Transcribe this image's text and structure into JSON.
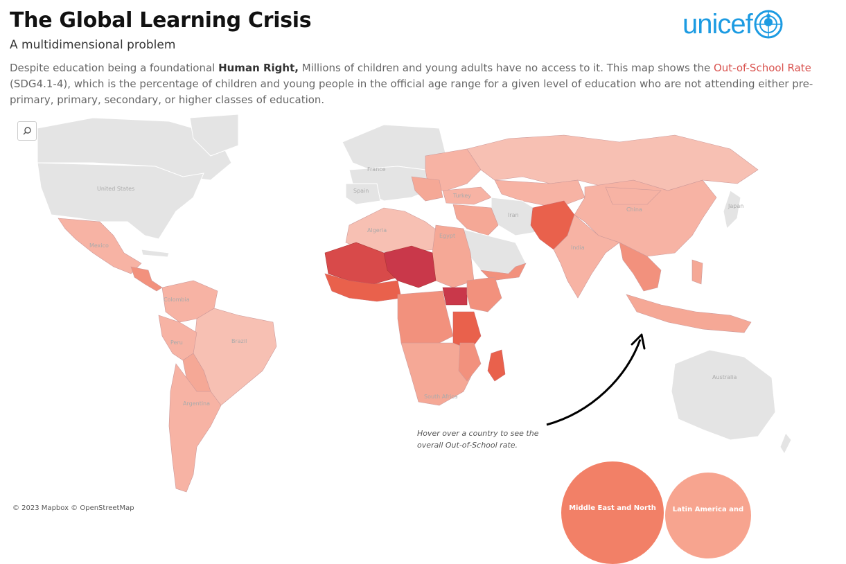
{
  "header": {
    "title": "The Global Learning Crisis",
    "subtitle": "A multidimensional problem",
    "desc_1": "Despite education being a foundational ",
    "desc_bold": "Human Right,",
    "desc_2": " Millions of children and young adults have no access to it. This map shows the ",
    "desc_highlight": "Out-of-School Rate",
    "desc_3": " (SDG4.1-4), which is the percentage of children and young people in the official age range for a given level of education who are not attending either pre-primary, primary, secondary, or higher classes of education."
  },
  "logo": {
    "text": "unicef"
  },
  "map": {
    "labels": {
      "united_states": "United States",
      "mexico": "Mexico",
      "colombia": "Colombia",
      "brazil": "Brazil",
      "peru": "Peru",
      "argentina": "Argentina",
      "france": "France",
      "spain": "Spain",
      "algeria": "Algeria",
      "egypt": "Egypt",
      "turkey": "Turkey",
      "iran": "Iran",
      "india": "India",
      "china": "China",
      "japan": "Japan",
      "south_africa": "South Africa",
      "australia": "Australia"
    },
    "annotation_line1": "Hover over a country to see the",
    "annotation_line2": "overall Out-of-School rate.",
    "credit": "© 2023 Mapbox  © OpenStreetMap"
  },
  "bubbles": [
    {
      "label": "Middle East and North",
      "color": "#f28067"
    },
    {
      "label": "Latin America and",
      "color": "#f7a48f"
    }
  ],
  "colors": {
    "accent": "#d9534f",
    "unicef_blue": "#1c9be2",
    "no_data": "#e4e4e4"
  }
}
